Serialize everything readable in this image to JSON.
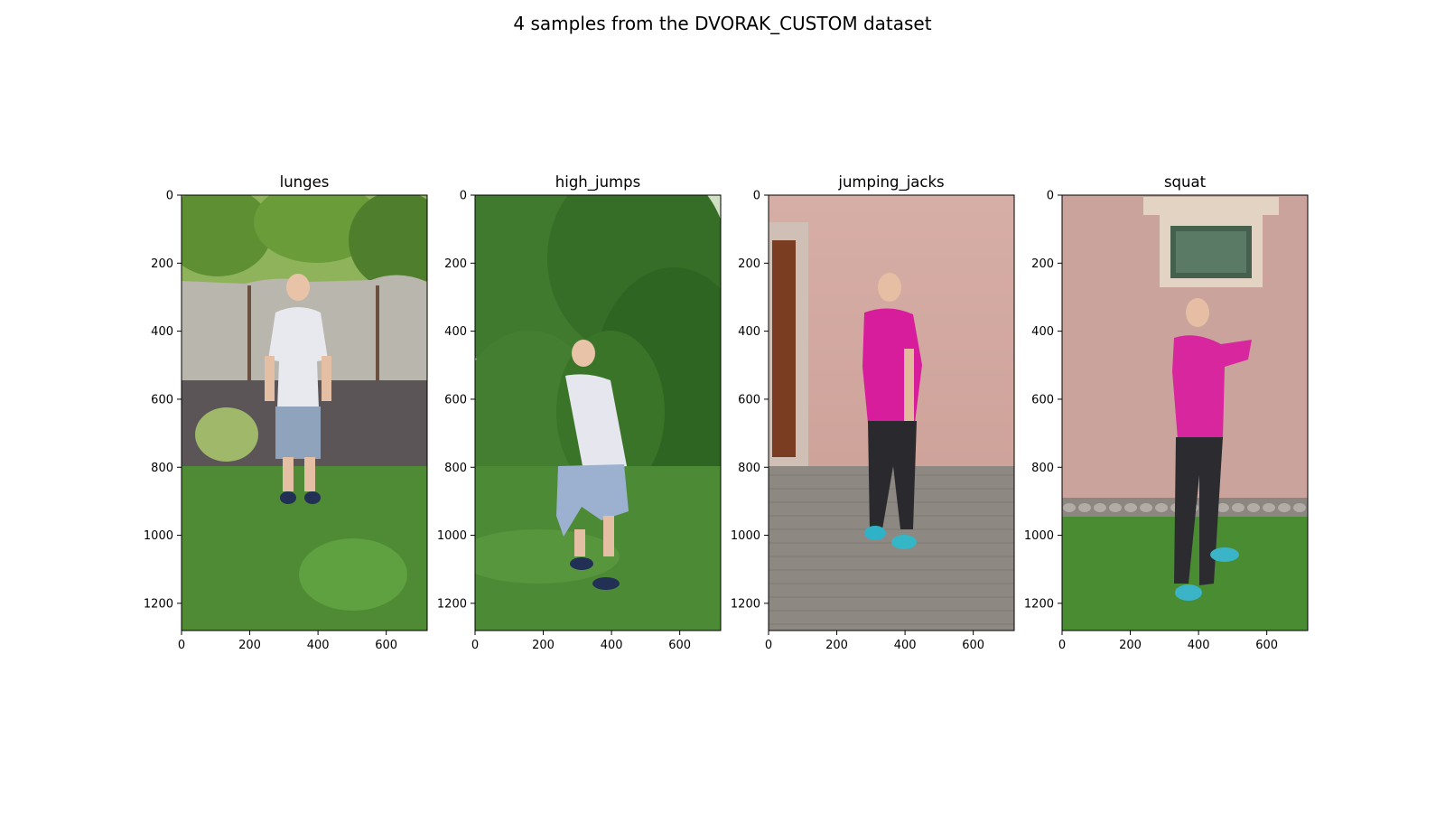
{
  "figure": {
    "title": "4 samples from the DVORAK_CUSTOM dataset"
  },
  "chart_data": [
    {
      "type": "image",
      "title": "lunges",
      "xlim": [
        0,
        720
      ],
      "ylim": [
        1280,
        0
      ],
      "xticks": [
        0,
        200,
        400,
        600
      ],
      "yticks": [
        0,
        200,
        400,
        600,
        800,
        1000,
        1200
      ],
      "scene": {
        "background": "garden with trees, concrete fence and grass",
        "subject": "man in white t-shirt and grey shorts standing",
        "colors": {
          "sky": "#8fb35a",
          "fence": "#b9b6ad",
          "ground": "#4f8a35",
          "shirt": "#e8e8ef",
          "shorts": "#8fa3bd"
        }
      }
    },
    {
      "type": "image",
      "title": "high_jumps",
      "xlim": [
        0,
        720
      ],
      "ylim": [
        1280,
        0
      ],
      "xticks": [
        0,
        200,
        400,
        600
      ],
      "yticks": [
        0,
        200,
        400,
        600,
        800,
        1000,
        1200
      ],
      "scene": {
        "background": "green bushes and lawn",
        "subject": "man in white t-shirt crouching before a jump",
        "colors": {
          "bush": "#3f7a2e",
          "ground": "#4d8a36",
          "shirt": "#e6e6ef",
          "shorts": "#9cb1cf"
        }
      }
    },
    {
      "type": "image",
      "title": "jumping_jacks",
      "xlim": [
        0,
        720
      ],
      "ylim": [
        1280,
        0
      ],
      "xticks": [
        0,
        200,
        400,
        600
      ],
      "yticks": [
        0,
        200,
        400,
        600,
        800,
        1000,
        1200
      ],
      "scene": {
        "background": "pink plastered wall with a door and paved ground",
        "subject": "woman in magenta top and black leggings standing",
        "colors": {
          "wall": "#d3a9a1",
          "ground": "#8e8882",
          "shirt": "#d81d9c",
          "leggings": "#2a2a2e"
        }
      }
    },
    {
      "type": "image",
      "title": "squat",
      "xlim": [
        0,
        720
      ],
      "ylim": [
        1280,
        0
      ],
      "xticks": [
        0,
        200,
        400,
        600
      ],
      "yticks": [
        0,
        200,
        400,
        600,
        800,
        1000,
        1200
      ],
      "scene": {
        "background": "pink wall with a window, gravel strip and grass",
        "subject": "woman in magenta top with hands clasped in front",
        "colors": {
          "wall": "#caa49c",
          "ground": "#4a8c32",
          "shirt": "#d8269e",
          "leggings": "#2b2b30"
        }
      }
    }
  ]
}
